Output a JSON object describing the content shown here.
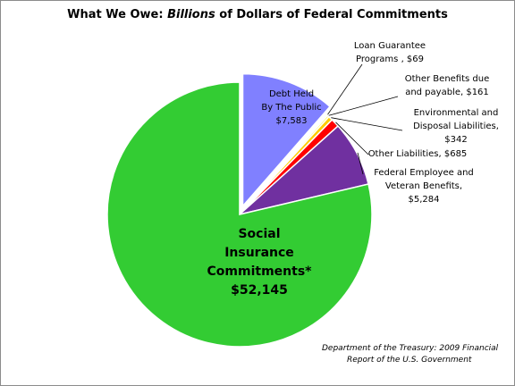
{
  "title": {
    "prefix": "What We Owe: ",
    "emphasis": "Billions",
    "suffix": " of Dollars of Federal Commitments"
  },
  "source": {
    "line1": "Department of the Treasury: 2009 Financial",
    "line2": "Report of the U.S. Government"
  },
  "chart_data": {
    "type": "pie",
    "title": "What We Owe: Billions of Dollars of Federal Commitments",
    "slices": [
      {
        "name": "Debt Held By The Public",
        "value": 7583,
        "color": "#8080ff",
        "exploded": true,
        "label_lines": [
          "Debt Held",
          "By The Public",
          "$7,583"
        ]
      },
      {
        "name": "Loan Guarantee Programs",
        "value": 69,
        "color": "#ffffff",
        "exploded": false,
        "label_lines": [
          "Loan Guarantee",
          "Programs , $69"
        ]
      },
      {
        "name": "Other Benefits due and payable",
        "value": 161,
        "color": "#ffff66",
        "exploded": false,
        "label_lines": [
          "Other Benefits due",
          "and payable, $161"
        ]
      },
      {
        "name": "Environmental and Disposal Liabilities",
        "value": 342,
        "color": "#ffcc00",
        "exploded": false,
        "label_lines": [
          "Environmental and",
          "Disposal Liabilities,",
          "$342"
        ]
      },
      {
        "name": "Other Liabilities",
        "value": 685,
        "color": "#ff0000",
        "exploded": false,
        "label_lines": [
          "Other Liabilities, $685"
        ]
      },
      {
        "name": "Federal Employee and Veteran Benefits",
        "value": 5284,
        "color": "#7030a0",
        "exploded": false,
        "label_lines": [
          "Federal Employee and",
          "Veteran Benefits,",
          "$5,284"
        ]
      },
      {
        "name": "Social Insurance Commitments*",
        "value": 52145,
        "color": "#33cc33",
        "exploded": false,
        "label_lines": [
          "Social",
          "Insurance",
          "Commitments*",
          "$52,145"
        ]
      }
    ]
  }
}
